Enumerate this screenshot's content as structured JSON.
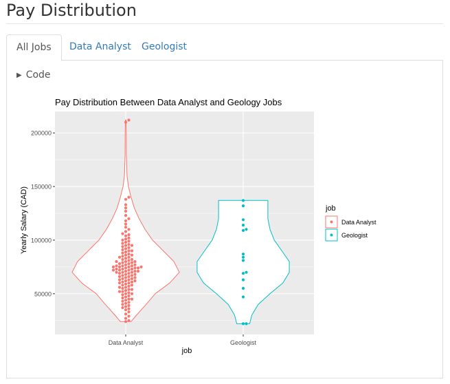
{
  "page": {
    "title": "Pay Distribution"
  },
  "tabs": [
    {
      "label": "All Jobs",
      "active": true
    },
    {
      "label": "Data Analyst",
      "active": false
    },
    {
      "label": "Geologist",
      "active": false
    }
  ],
  "code_toggle": {
    "label": "Code",
    "icon": "triangle-right-icon"
  },
  "chart_data": {
    "type": "violin",
    "title": "Pay Distribution Between Data Analyst and Geology Jobs",
    "xlabel": "job",
    "ylabel": "Yearly Salary (CAD)",
    "categories": [
      "Data Analyst",
      "Geologist"
    ],
    "ylim": [
      12000,
      220000
    ],
    "yticks": [
      50000,
      100000,
      150000,
      200000
    ],
    "ytick_labels": [
      "50000",
      "100000",
      "150000",
      "200000"
    ],
    "grid": true,
    "legend": {
      "title": "job",
      "position": "right",
      "entries": [
        "Data Analyst",
        "Geologist"
      ]
    },
    "colors": {
      "Data Analyst": "#F8766D",
      "Geologist": "#00BFC4",
      "panel": "#EBEBEB",
      "grid": "#FFFFFF"
    },
    "series": [
      {
        "name": "Data Analyst",
        "violin": [
          [
            24000,
            0.1
          ],
          [
            30000,
            0.2
          ],
          [
            40000,
            0.38
          ],
          [
            50000,
            0.55
          ],
          [
            60000,
            0.82
          ],
          [
            70000,
            1.0
          ],
          [
            80000,
            0.9
          ],
          [
            90000,
            0.7
          ],
          [
            100000,
            0.5
          ],
          [
            110000,
            0.36
          ],
          [
            120000,
            0.25
          ],
          [
            130000,
            0.16
          ],
          [
            140000,
            0.1
          ],
          [
            150000,
            0.05
          ],
          [
            160000,
            0.025
          ],
          [
            180000,
            0.012
          ],
          [
            200000,
            0.01
          ],
          [
            212000,
            0.006
          ]
        ],
        "points": [
          212000,
          210000,
          140000,
          138000,
          133000,
          130000,
          127000,
          123000,
          120000,
          118000,
          115000,
          112000,
          110000,
          108000,
          106000,
          105000,
          104000,
          102000,
          101000,
          100000,
          99000,
          98000,
          97000,
          96000,
          95000,
          95000,
          94000,
          93000,
          92000,
          91000,
          90000,
          90000,
          89000,
          88000,
          87000,
          86000,
          86000,
          85000,
          84000,
          84000,
          83000,
          82000,
          82000,
          81000,
          80000,
          80000,
          80000,
          79000,
          79000,
          78000,
          78000,
          77000,
          77000,
          76000,
          76000,
          76000,
          75000,
          75000,
          75000,
          75000,
          74000,
          74000,
          74000,
          73000,
          73000,
          73000,
          72000,
          72000,
          72000,
          71000,
          71000,
          71000,
          70000,
          70000,
          70000,
          69000,
          69000,
          68000,
          68000,
          67000,
          67000,
          66000,
          66000,
          65000,
          65000,
          64000,
          64000,
          63000,
          63000,
          62000,
          62000,
          61000,
          61000,
          60000,
          60000,
          59000,
          58000,
          58000,
          57000,
          56000,
          56000,
          55000,
          54000,
          54000,
          53000,
          52000,
          52000,
          51000,
          50000,
          50000,
          49000,
          48000,
          47000,
          46000,
          45000,
          45000,
          44000,
          43000,
          42000,
          41000,
          40000,
          39000,
          38000,
          37000,
          36000,
          35000,
          33000,
          31000,
          29000,
          27000,
          25000,
          24000
        ]
      },
      {
        "name": "Geologist",
        "violin": [
          [
            22000,
            0.12
          ],
          [
            30000,
            0.16
          ],
          [
            40000,
            0.28
          ],
          [
            50000,
            0.5
          ],
          [
            60000,
            0.74
          ],
          [
            70000,
            0.86
          ],
          [
            80000,
            0.86
          ],
          [
            90000,
            0.72
          ],
          [
            100000,
            0.58
          ],
          [
            110000,
            0.5
          ],
          [
            120000,
            0.46
          ],
          [
            130000,
            0.46
          ],
          [
            137000,
            0.46
          ]
        ],
        "points": [
          137000,
          132000,
          119000,
          114000,
          110000,
          109000,
          87000,
          84000,
          81000,
          70000,
          69000,
          63000,
          55000,
          47000,
          22000,
          22000
        ]
      }
    ]
  }
}
